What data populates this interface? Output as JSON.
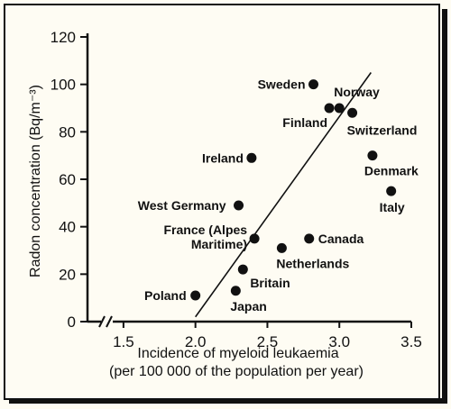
{
  "chart_data": {
    "type": "scatter",
    "xlabel_line1": "Incidence of myeloid leukaemia",
    "xlabel_line2": "(per 100 000 of the population per year)",
    "ylabel": "Radon concentration (Bq/m⁻³)",
    "xlim": [
      1.25,
      3.5
    ],
    "ylim": [
      0,
      120
    ],
    "x_ticks": [
      "1.5",
      "2.0",
      "2.5",
      "3.0",
      "3.5"
    ],
    "y_ticks": [
      "0",
      "20",
      "40",
      "60",
      "80",
      "100",
      "120"
    ],
    "axis_break": true,
    "points": [
      {
        "label": "Sweden",
        "x": 2.82,
        "y": 100
      },
      {
        "label": "Finland",
        "x": 2.93,
        "y": 90
      },
      {
        "label": "Norway",
        "x": 3.0,
        "y": 90
      },
      {
        "label": "Switzerland",
        "x": 3.09,
        "y": 88
      },
      {
        "label": "Ireland",
        "x": 2.39,
        "y": 69
      },
      {
        "label": "Denmark",
        "x": 3.23,
        "y": 70
      },
      {
        "label": "Italy",
        "x": 3.36,
        "y": 55
      },
      {
        "label": "West Germany",
        "x": 2.3,
        "y": 49
      },
      {
        "label": "France (Alpes Maritime)",
        "x": 2.41,
        "y": 35
      },
      {
        "label": "Canada",
        "x": 2.79,
        "y": 35
      },
      {
        "label": "Netherlands",
        "x": 2.6,
        "y": 31
      },
      {
        "label": "Britain",
        "x": 2.33,
        "y": 22
      },
      {
        "label": "Poland",
        "x": 2.0,
        "y": 11
      },
      {
        "label": "Japan",
        "x": 2.28,
        "y": 13
      }
    ],
    "trend_line": {
      "x": [
        2.0,
        3.22
      ],
      "y": [
        2,
        105
      ]
    }
  }
}
